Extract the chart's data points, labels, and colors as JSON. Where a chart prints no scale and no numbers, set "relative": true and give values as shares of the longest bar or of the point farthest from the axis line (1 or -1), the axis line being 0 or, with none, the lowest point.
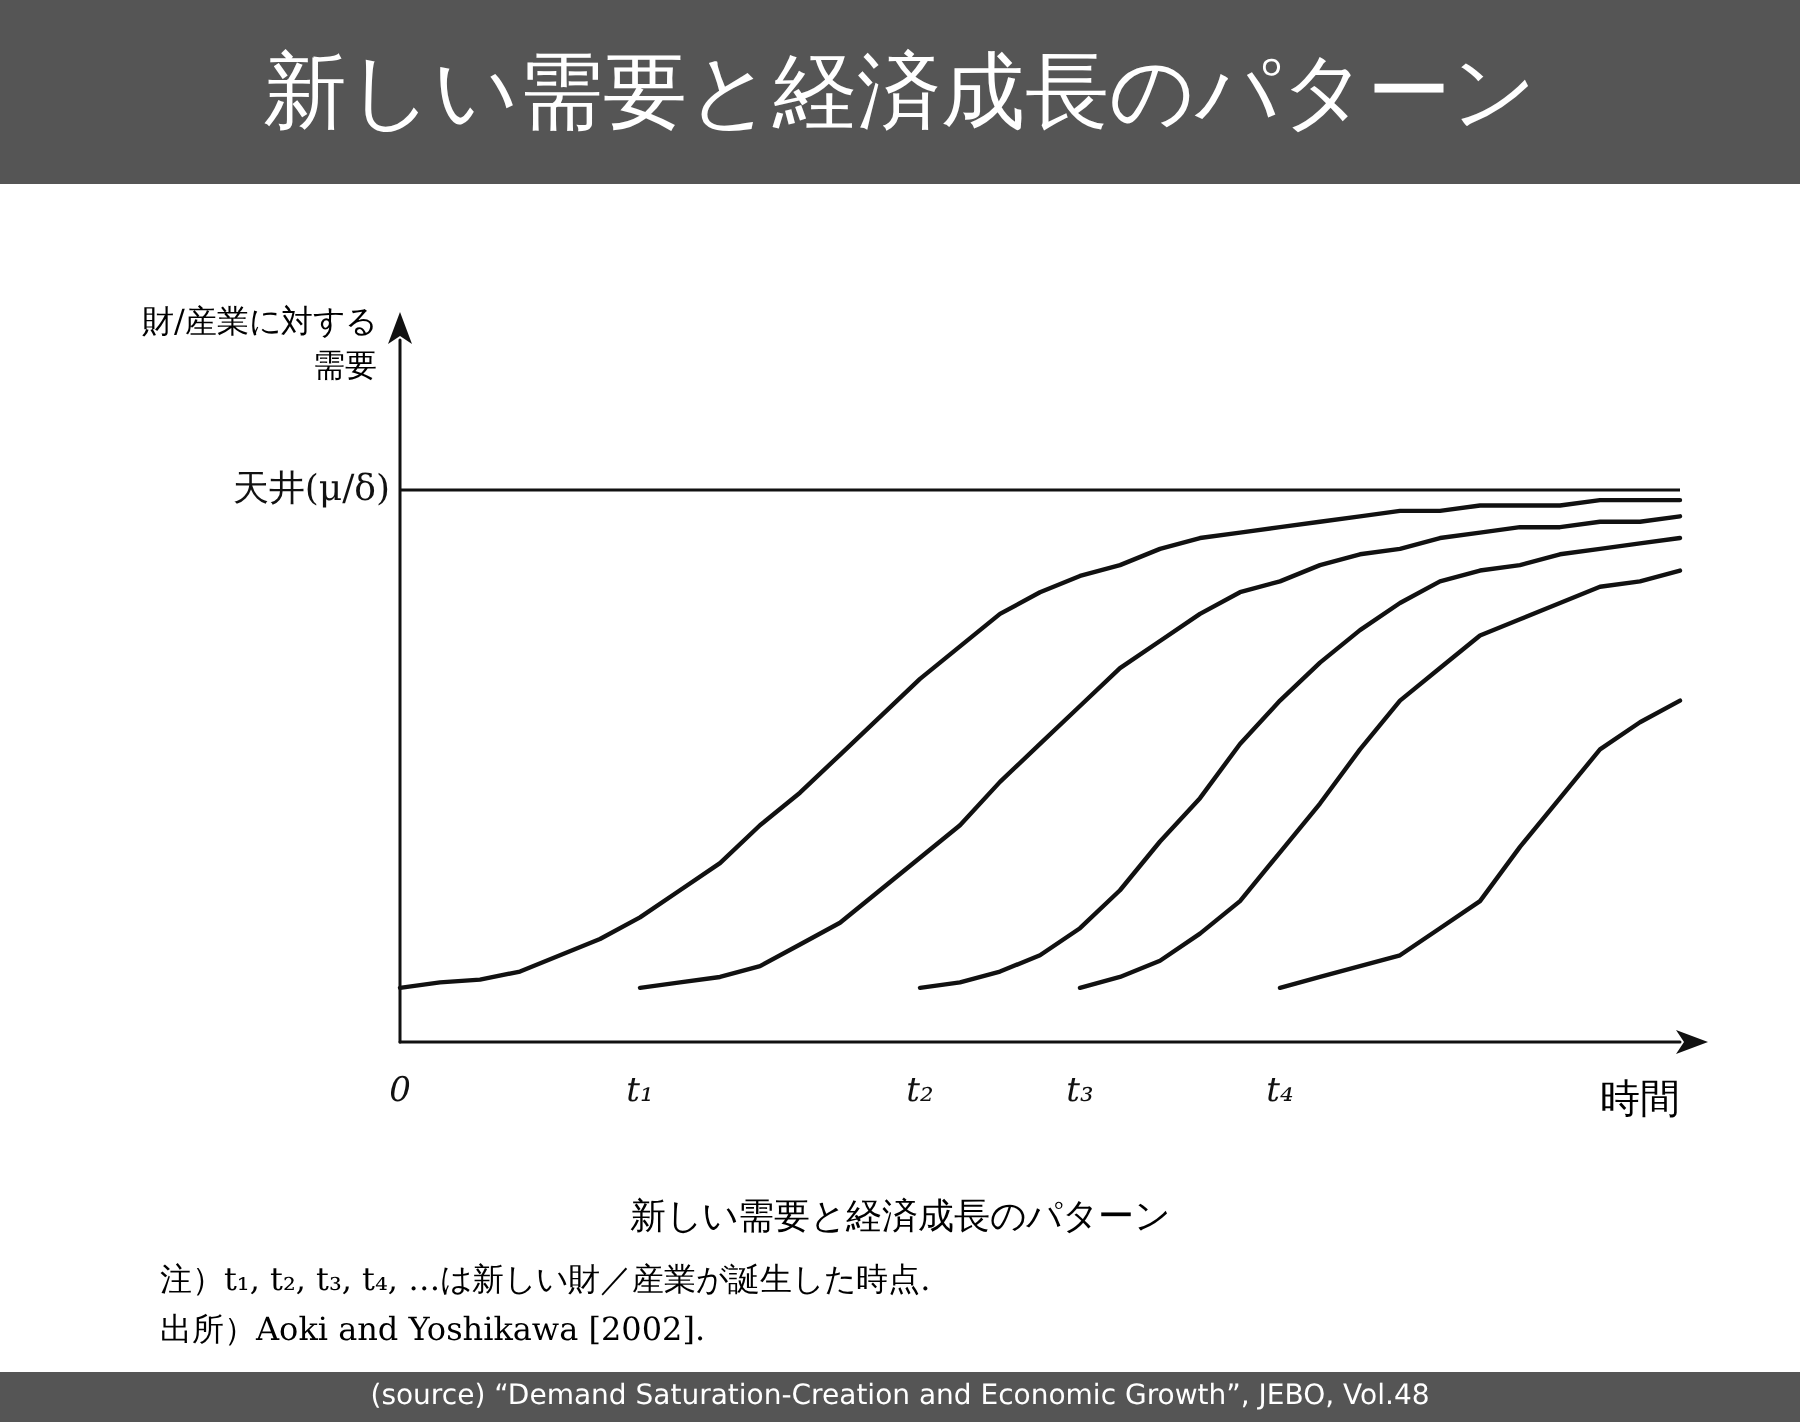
{
  "chart_data": {
    "type": "line",
    "relative": true,
    "title": "新しい需要と経済成長のパターン",
    "ylabel": "財/産業に対する需要",
    "xlabel": "時間",
    "categories": [
      "0",
      null,
      null,
      null,
      null,
      null,
      "t₁",
      null,
      null,
      null,
      null,
      null,
      null,
      "t₂",
      null,
      null,
      null,
      "t₃",
      null,
      null,
      null,
      null,
      "t₄",
      null,
      null,
      null,
      null,
      null,
      null,
      null,
      null,
      null,
      null
    ],
    "series": [
      {
        "color": "#111111",
        "values": [
          0.1,
          0.11,
          0.115,
          0.13,
          0.16,
          0.19,
          0.23,
          0.28,
          0.33,
          0.4,
          0.46,
          0.53,
          0.6,
          0.67,
          0.73,
          0.79,
          0.83,
          0.86,
          0.88,
          0.91,
          0.93,
          0.94,
          0.95,
          0.96,
          0.97,
          0.98,
          0.98,
          0.99,
          0.99,
          0.99,
          1.0,
          1.0,
          1.0
        ]
      },
      {
        "color": "#111111",
        "values": [
          null,
          null,
          null,
          null,
          null,
          null,
          0.1,
          0.11,
          0.12,
          0.14,
          0.18,
          0.22,
          0.28,
          0.34,
          0.4,
          0.48,
          0.55,
          0.62,
          0.69,
          0.74,
          0.79,
          0.83,
          0.85,
          0.88,
          0.9,
          0.91,
          0.93,
          0.94,
          0.95,
          0.95,
          0.96,
          0.96,
          0.97
        ]
      },
      {
        "color": "#111111",
        "values": [
          null,
          null,
          null,
          null,
          null,
          null,
          null,
          null,
          null,
          null,
          null,
          null,
          null,
          0.1,
          0.11,
          0.13,
          0.16,
          0.21,
          0.28,
          0.37,
          0.45,
          0.55,
          0.63,
          0.7,
          0.76,
          0.81,
          0.85,
          0.87,
          0.88,
          0.9,
          0.91,
          0.92,
          0.93
        ]
      },
      {
        "color": "#111111",
        "values": [
          null,
          null,
          null,
          null,
          null,
          null,
          null,
          null,
          null,
          null,
          null,
          null,
          null,
          null,
          null,
          null,
          null,
          0.1,
          0.12,
          0.15,
          0.2,
          0.26,
          0.35,
          0.44,
          0.54,
          0.63,
          0.69,
          0.75,
          0.78,
          0.81,
          0.84,
          0.85,
          0.87
        ]
      },
      {
        "color": "#111111",
        "values": [
          null,
          null,
          null,
          null,
          null,
          null,
          null,
          null,
          null,
          null,
          null,
          null,
          null,
          null,
          null,
          null,
          null,
          null,
          null,
          null,
          null,
          null,
          0.1,
          0.12,
          0.14,
          0.16,
          0.21,
          0.26,
          0.36,
          0.45,
          0.54,
          0.59,
          0.63
        ]
      }
    ],
    "ref_lines": [
      {
        "axis": "y",
        "value": 1.02,
        "label": "天井(μ/δ)",
        "color": "#111111"
      }
    ],
    "grid": false,
    "marker": "none",
    "line_style": "solid",
    "annotations": [
      "新しい需要と経済成長のパターン",
      "注）t₁, t₂, t₃, t₄, …は新しい財／産業が誕生した時点.",
      "出所）Aoki and Yoshikawa [2002].",
      "(source) “Demand Saturation-Creation and Economic Growth”, JEBO, Vol.48"
    ]
  }
}
